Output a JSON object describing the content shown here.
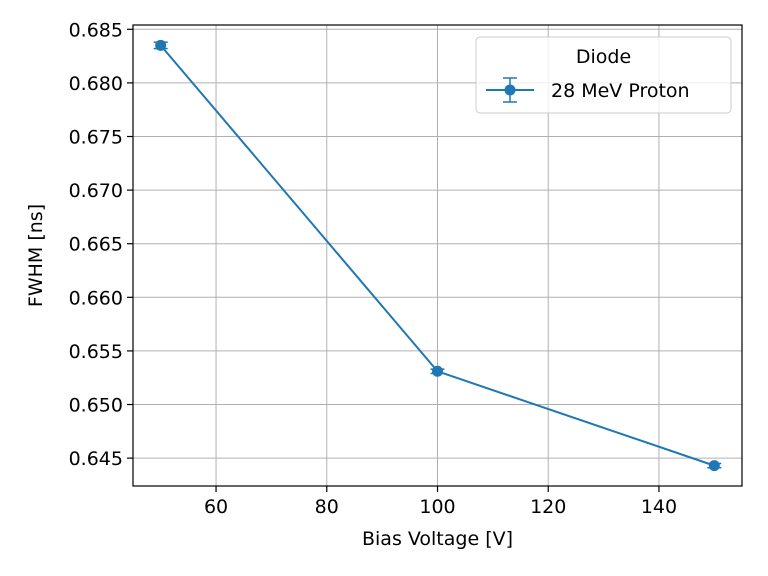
{
  "chart_data": {
    "type": "line",
    "title": "",
    "xlabel": "Bias Voltage [V]",
    "ylabel": "FWHM [ns]",
    "xlim": [
      45,
      155
    ],
    "ylim": [
      0.6424,
      0.6854
    ],
    "xticks": [
      "60",
      "80",
      "100",
      "120",
      "140"
    ],
    "xtick_values": [
      60,
      80,
      100,
      120,
      140
    ],
    "yticks": [
      "0.645",
      "0.650",
      "0.655",
      "0.660",
      "0.665",
      "0.670",
      "0.675",
      "0.680",
      "0.685"
    ],
    "ytick_values": [
      0.645,
      0.65,
      0.655,
      0.66,
      0.665,
      0.67,
      0.675,
      0.68,
      0.685
    ],
    "grid": true,
    "legend": {
      "title": "Diode",
      "placement": "top-right"
    },
    "series": [
      {
        "name": "28 MeV Proton",
        "color": "#1f77b4",
        "marker": "circle",
        "x": [
          50,
          100,
          150
        ],
        "y": [
          0.6835,
          0.6531,
          0.6443
        ],
        "yerr": [
          0.0003,
          0.0002,
          0.0002
        ]
      }
    ]
  }
}
